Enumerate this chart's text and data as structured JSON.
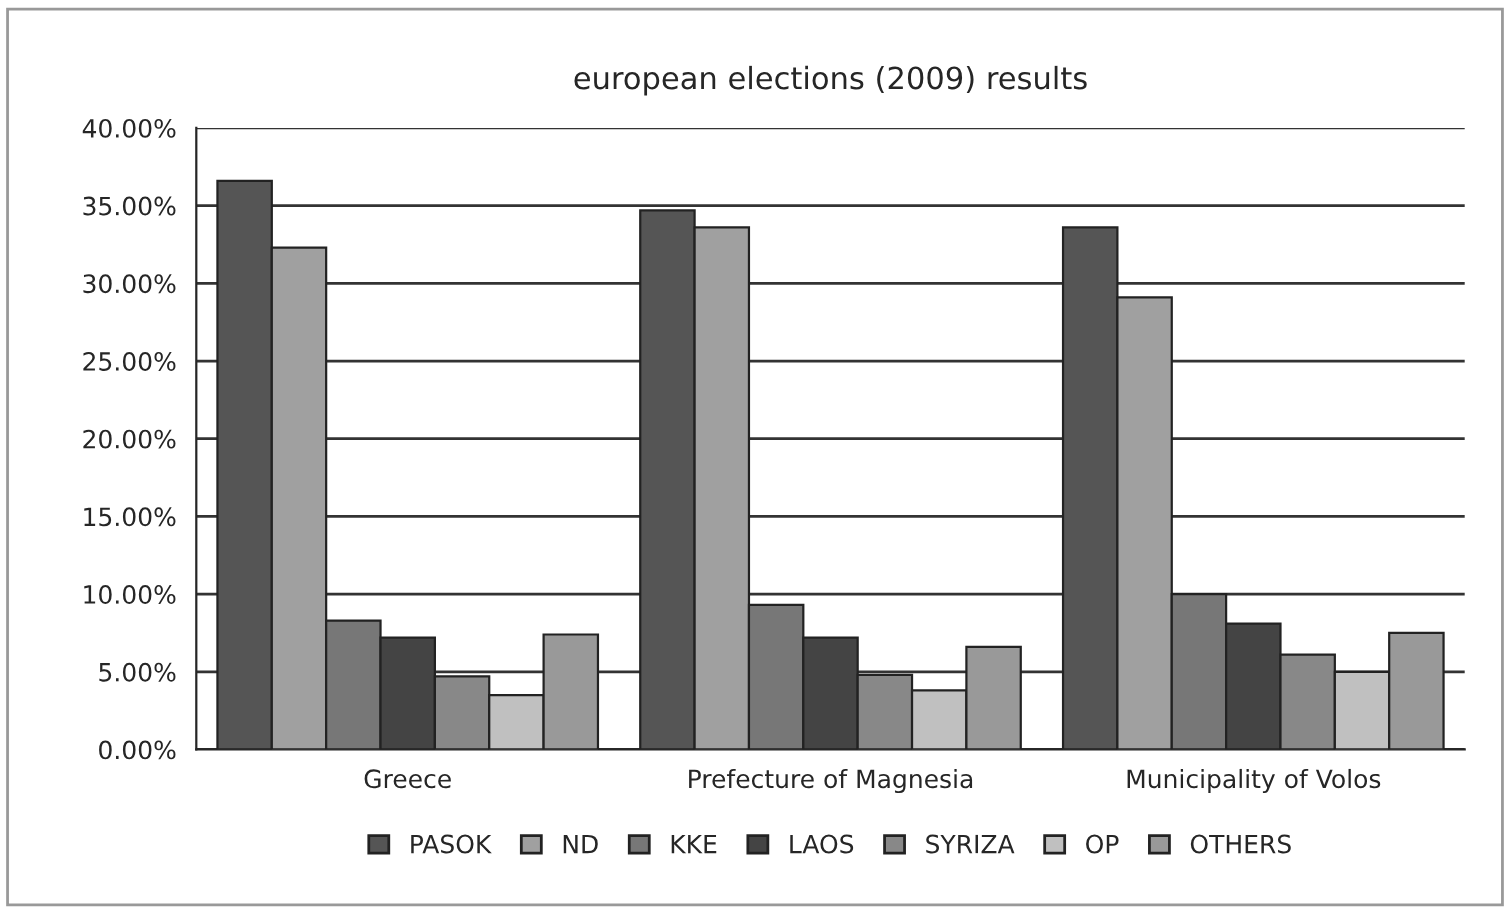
{
  "chart_data": {
    "type": "bar",
    "title": "european elections (2009) results",
    "categories": [
      "Greece",
      "Prefecture of Magnesia",
      "Municipality of Volos"
    ],
    "series": [
      {
        "name": "PASOK",
        "color": "#555555",
        "values": [
          36.6,
          34.7,
          33.6
        ]
      },
      {
        "name": "ND",
        "color": "#a0a0a0",
        "values": [
          32.3,
          33.6,
          29.1
        ]
      },
      {
        "name": "KKE",
        "color": "#777777",
        "values": [
          8.3,
          9.3,
          10.0
        ]
      },
      {
        "name": "LAOS",
        "color": "#444444",
        "values": [
          7.2,
          7.2,
          8.1
        ]
      },
      {
        "name": "SYRIZA",
        "color": "#888888",
        "values": [
          4.7,
          4.8,
          6.1
        ]
      },
      {
        "name": "OP",
        "color": "#c0c0c0",
        "values": [
          3.5,
          3.8,
          5.0
        ]
      },
      {
        "name": "OTHERS",
        "color": "#999999",
        "values": [
          7.4,
          6.6,
          7.5
        ]
      }
    ],
    "ylim": [
      0,
      40
    ],
    "yticks": [
      {
        "value": 0,
        "label": "0.00%"
      },
      {
        "value": 5,
        "label": "5.00%"
      },
      {
        "value": 10,
        "label": "10.00%"
      },
      {
        "value": 15,
        "label": "15.00%"
      },
      {
        "value": 20,
        "label": "20.00%"
      },
      {
        "value": 25,
        "label": "25.00%"
      },
      {
        "value": 30,
        "label": "30.00%"
      },
      {
        "value": 35,
        "label": "35.00%"
      },
      {
        "value": 40,
        "label": "40.00%"
      }
    ],
    "grid": "y",
    "legend": "bottom"
  }
}
